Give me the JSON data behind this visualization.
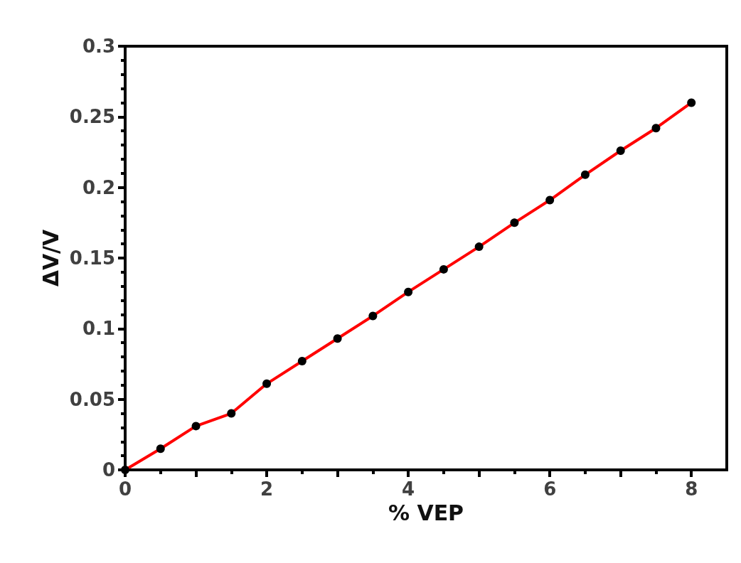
{
  "chart_data": {
    "type": "line",
    "xlabel": "% VEP",
    "ylabel": "ΔV/V",
    "x": [
      0,
      0.5,
      1,
      1.5,
      2,
      2.5,
      3,
      3.5,
      4,
      4.5,
      5,
      5.5,
      6,
      6.5,
      7,
      7.5,
      8
    ],
    "series": [
      {
        "color": "#ff0000",
        "values": [
          0,
          0.015,
          0.031,
          0.04,
          0.061,
          0.077,
          0.093,
          0.109,
          0.126,
          0.142,
          0.158,
          0.175,
          0.191,
          0.209,
          0.226,
          0.242,
          0.26
        ]
      }
    ],
    "xlim": [
      0,
      8.5
    ],
    "xticks": [
      0,
      {
        "value": 1,
        "label": null
      },
      2,
      {
        "value": 3,
        "label": null
      },
      4,
      {
        "value": 5,
        "label": null
      },
      6,
      {
        "value": 7,
        "label": null
      },
      8
    ],
    "ylim": [
      0,
      0.3
    ],
    "yticks": [
      0,
      0.05,
      0.1,
      0.15,
      0.2,
      0.25,
      0.3
    ],
    "marker": "circle",
    "line_style": "solid",
    "grid": false
  }
}
